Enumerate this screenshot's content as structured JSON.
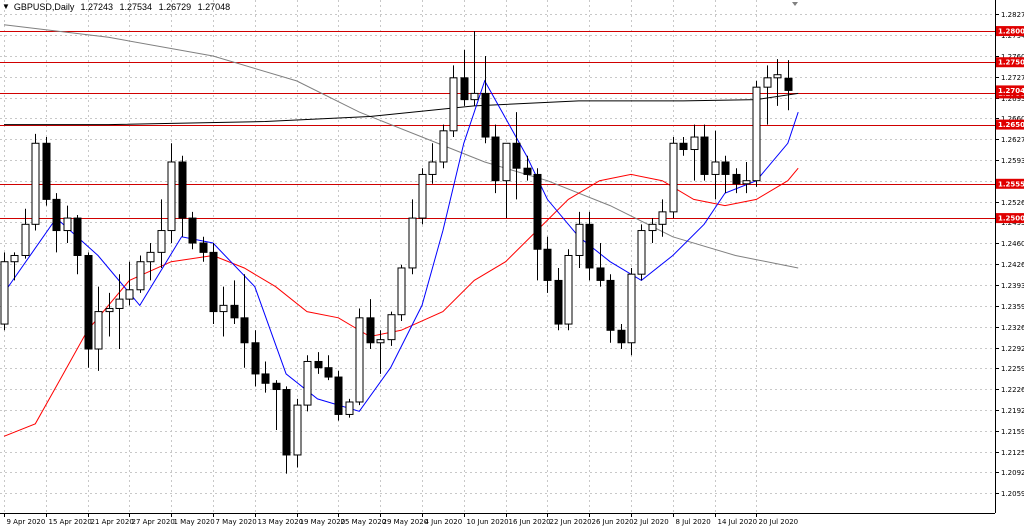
{
  "window": {
    "symbol": "GBPUSD,Daily",
    "ohlc": [
      "1.27243",
      "1.27534",
      "1.26729",
      "1.27048"
    ]
  },
  "colors": {
    "background": "#ffffff",
    "grid": "#c8c8c8",
    "bull_body": "#ffffff",
    "bear_body": "#000000",
    "wick": "#000000",
    "hline": "#d00000",
    "label_bg": "#e00000",
    "ma_fast": "#0000ff",
    "ma_mid": "#ff0000",
    "ma_long": "#000000",
    "ma_slow": "#808080"
  },
  "chart_data": {
    "type": "candlestick",
    "yaxis": {
      "range": [
        1.2059,
        1.2837
      ],
      "ticks": [
        "1.28270",
        "1.27940",
        "1.27600",
        "1.27270",
        "1.26930",
        "1.26600",
        "1.26270",
        "1.25930",
        "1.25600",
        "1.25260",
        "1.24930",
        "1.24600",
        "1.24260",
        "1.23930",
        "1.23590",
        "1.23260",
        "1.22920",
        "1.22590",
        "1.22260",
        "1.21920",
        "1.21590",
        "1.21250",
        "1.20920",
        "1.20590"
      ]
    },
    "xaxis": {
      "ticks": [
        "9 Apr 2020",
        "15 Apr 2020",
        "21 Apr 2020",
        "27 Apr 2020",
        "1 May 2020",
        "7 May 2020",
        "13 May 2020",
        "19 May 2020",
        "25 May 2020",
        "29 May 2020",
        "4 Jun 2020",
        "10 Jun 2020",
        "16 Jun 2020",
        "22 Jun 2020",
        "26 Jun 2020",
        "2 Jul 2020",
        "8 Jul 2020",
        "14 Jul 2020",
        "20 Jul 2020"
      ],
      "tick_index": [
        0,
        4,
        8,
        12,
        16,
        20,
        24,
        28,
        32,
        36,
        40,
        44,
        48,
        52,
        56,
        60,
        64,
        68,
        72
      ]
    },
    "horizontal_levels": [
      {
        "value": 1.28,
        "label": "1.28000"
      },
      {
        "value": 1.275,
        "label": "1.27500"
      },
      {
        "value": 1.27,
        "label": "1.27000"
      },
      {
        "value": 1.265,
        "label": "1.26500"
      },
      {
        "value": 1.2555,
        "label": "1.25550"
      },
      {
        "value": 1.25,
        "label": "1.25000"
      }
    ],
    "current_price": {
      "value": 1.27048,
      "label": "1.27048"
    },
    "candles": [
      [
        1.233,
        1.2445,
        1.232,
        1.243
      ],
      [
        1.243,
        1.2445,
        1.24,
        1.244
      ],
      [
        1.244,
        1.2515,
        1.2435,
        1.249
      ],
      [
        1.249,
        1.2635,
        1.248,
        1.262
      ],
      [
        1.262,
        1.263,
        1.252,
        1.253
      ],
      [
        1.253,
        1.254,
        1.2445,
        1.248
      ],
      [
        1.248,
        1.252,
        1.246,
        1.25
      ],
      [
        1.25,
        1.2505,
        1.241,
        1.244
      ],
      [
        1.244,
        1.2445,
        1.226,
        1.229
      ],
      [
        1.229,
        1.239,
        1.2255,
        1.235
      ],
      [
        1.235,
        1.238,
        1.231,
        1.2355
      ],
      [
        1.2355,
        1.241,
        1.229,
        1.237
      ],
      [
        1.237,
        1.243,
        1.236,
        1.2385
      ],
      [
        1.2385,
        1.244,
        1.238,
        1.243
      ],
      [
        1.243,
        1.246,
        1.24,
        1.2445
      ],
      [
        1.2445,
        1.253,
        1.242,
        1.248
      ],
      [
        1.248,
        1.262,
        1.246,
        1.259
      ],
      [
        1.259,
        1.26,
        1.247,
        1.25
      ],
      [
        1.25,
        1.251,
        1.245,
        1.246
      ],
      [
        1.246,
        1.247,
        1.243,
        1.2445
      ],
      [
        1.2445,
        1.246,
        1.233,
        1.235
      ],
      [
        1.235,
        1.239,
        1.231,
        1.236
      ],
      [
        1.236,
        1.24,
        1.233,
        1.234
      ],
      [
        1.234,
        1.241,
        1.226,
        1.23
      ],
      [
        1.23,
        1.232,
        1.223,
        1.225
      ],
      [
        1.225,
        1.227,
        1.222,
        1.2235
      ],
      [
        1.2235,
        1.224,
        1.216,
        1.2225
      ],
      [
        1.2225,
        1.223,
        1.209,
        1.212
      ],
      [
        1.212,
        1.221,
        1.21,
        1.22
      ],
      [
        1.22,
        1.228,
        1.219,
        1.227
      ],
      [
        1.227,
        1.2285,
        1.225,
        1.226
      ],
      [
        1.226,
        1.228,
        1.224,
        1.2245
      ],
      [
        1.2245,
        1.2255,
        1.2175,
        1.2185
      ],
      [
        1.2185,
        1.221,
        1.218,
        1.2205
      ],
      [
        1.2205,
        1.2355,
        1.22,
        1.234
      ],
      [
        1.234,
        1.237,
        1.229,
        1.23
      ],
      [
        1.23,
        1.232,
        1.225,
        1.2305
      ],
      [
        1.2305,
        1.235,
        1.2295,
        1.2345
      ],
      [
        1.2345,
        1.2425,
        1.2335,
        1.242
      ],
      [
        1.242,
        1.253,
        1.241,
        1.25
      ],
      [
        1.25,
        1.258,
        1.249,
        1.257
      ],
      [
        1.257,
        1.262,
        1.2555,
        1.259
      ],
      [
        1.259,
        1.265,
        1.258,
        1.264
      ],
      [
        1.264,
        1.2745,
        1.263,
        1.2725
      ],
      [
        1.2725,
        1.277,
        1.268,
        1.269
      ],
      [
        1.269,
        1.28,
        1.268,
        1.27
      ],
      [
        1.27,
        1.276,
        1.262,
        1.263
      ],
      [
        1.263,
        1.265,
        1.254,
        1.256
      ],
      [
        1.256,
        1.262,
        1.25,
        1.262
      ],
      [
        1.262,
        1.267,
        1.253,
        1.258
      ],
      [
        1.258,
        1.26,
        1.256,
        1.257
      ],
      [
        1.257,
        1.258,
        1.24,
        1.245
      ],
      [
        1.245,
        1.247,
        1.238,
        1.24
      ],
      [
        1.24,
        1.242,
        1.232,
        1.233
      ],
      [
        1.233,
        1.245,
        1.232,
        1.244
      ],
      [
        1.244,
        1.251,
        1.242,
        1.249
      ],
      [
        1.249,
        1.251,
        1.24,
        1.242
      ],
      [
        1.242,
        1.246,
        1.239,
        1.24
      ],
      [
        1.24,
        1.241,
        1.23,
        1.232
      ],
      [
        1.232,
        1.233,
        1.229,
        1.23
      ],
      [
        1.23,
        1.242,
        1.228,
        1.241
      ],
      [
        1.241,
        1.249,
        1.24,
        1.248
      ],
      [
        1.248,
        1.25,
        1.246,
        1.249
      ],
      [
        1.249,
        1.253,
        1.247,
        1.251
      ],
      [
        1.251,
        1.263,
        1.25,
        1.262
      ],
      [
        1.262,
        1.263,
        1.26,
        1.261
      ],
      [
        1.261,
        1.265,
        1.256,
        1.263
      ],
      [
        1.263,
        1.265,
        1.256,
        1.257
      ],
      [
        1.257,
        1.264,
        1.253,
        1.259
      ],
      [
        1.259,
        1.26,
        1.254,
        1.257
      ],
      [
        1.257,
        1.258,
        1.254,
        1.2555
      ],
      [
        1.2555,
        1.259,
        1.254,
        1.256
      ],
      [
        1.256,
        1.272,
        1.255,
        1.271
      ],
      [
        1.271,
        1.2745,
        1.265,
        1.2725
      ],
      [
        1.2725,
        1.2755,
        1.268,
        1.273
      ],
      [
        1.27243,
        1.27534,
        1.26729,
        1.27048
      ]
    ],
    "ma_fast": [
      [
        0,
        1.238
      ],
      [
        5,
        1.25
      ],
      [
        9,
        1.244
      ],
      [
        13,
        1.236
      ],
      [
        17,
        1.247
      ],
      [
        20,
        1.246
      ],
      [
        24,
        1.239
      ],
      [
        27,
        1.225
      ],
      [
        30,
        1.221
      ],
      [
        34,
        1.219
      ],
      [
        37,
        1.226
      ],
      [
        40,
        1.236
      ],
      [
        42,
        1.248
      ],
      [
        44,
        1.262
      ],
      [
        46,
        1.272
      ],
      [
        48,
        1.266
      ],
      [
        50,
        1.26
      ],
      [
        52,
        1.253
      ],
      [
        55,
        1.247
      ],
      [
        58,
        1.243
      ],
      [
        61,
        1.24
      ],
      [
        64,
        1.244
      ],
      [
        67,
        1.249
      ],
      [
        69,
        1.254
      ],
      [
        72,
        1.256
      ],
      [
        75,
        1.262
      ],
      [
        76,
        1.267
      ]
    ],
    "ma_mid": [
      [
        0,
        1.215
      ],
      [
        3,
        1.217
      ],
      [
        5,
        1.223
      ],
      [
        8,
        1.232
      ],
      [
        12,
        1.24
      ],
      [
        16,
        1.243
      ],
      [
        20,
        1.244
      ],
      [
        23,
        1.242
      ],
      [
        26,
        1.239
      ],
      [
        29,
        1.235
      ],
      [
        32,
        1.234
      ],
      [
        35,
        1.231
      ],
      [
        38,
        1.232
      ],
      [
        42,
        1.235
      ],
      [
        45,
        1.24
      ],
      [
        48,
        1.243
      ],
      [
        51,
        1.248
      ],
      [
        54,
        1.253
      ],
      [
        57,
        1.256
      ],
      [
        60,
        1.257
      ],
      [
        63,
        1.256
      ],
      [
        66,
        1.253
      ],
      [
        69,
        1.252
      ],
      [
        72,
        1.253
      ],
      [
        75,
        1.256
      ],
      [
        76,
        1.258
      ]
    ],
    "ma_long": [
      [
        0,
        1.265
      ],
      [
        10,
        1.265
      ],
      [
        25,
        1.2655
      ],
      [
        35,
        1.2663
      ],
      [
        45,
        1.268
      ],
      [
        55,
        1.2688
      ],
      [
        65,
        1.2688
      ],
      [
        72,
        1.269
      ],
      [
        76,
        1.27
      ]
    ],
    "ma_slow": [
      [
        0,
        1.281
      ],
      [
        10,
        1.279
      ],
      [
        20,
        1.276
      ],
      [
        28,
        1.272
      ],
      [
        34,
        1.267
      ],
      [
        40,
        1.263
      ],
      [
        46,
        1.259
      ],
      [
        52,
        1.256
      ],
      [
        58,
        1.252
      ],
      [
        64,
        1.247
      ],
      [
        70,
        1.244
      ],
      [
        76,
        1.242
      ]
    ]
  }
}
